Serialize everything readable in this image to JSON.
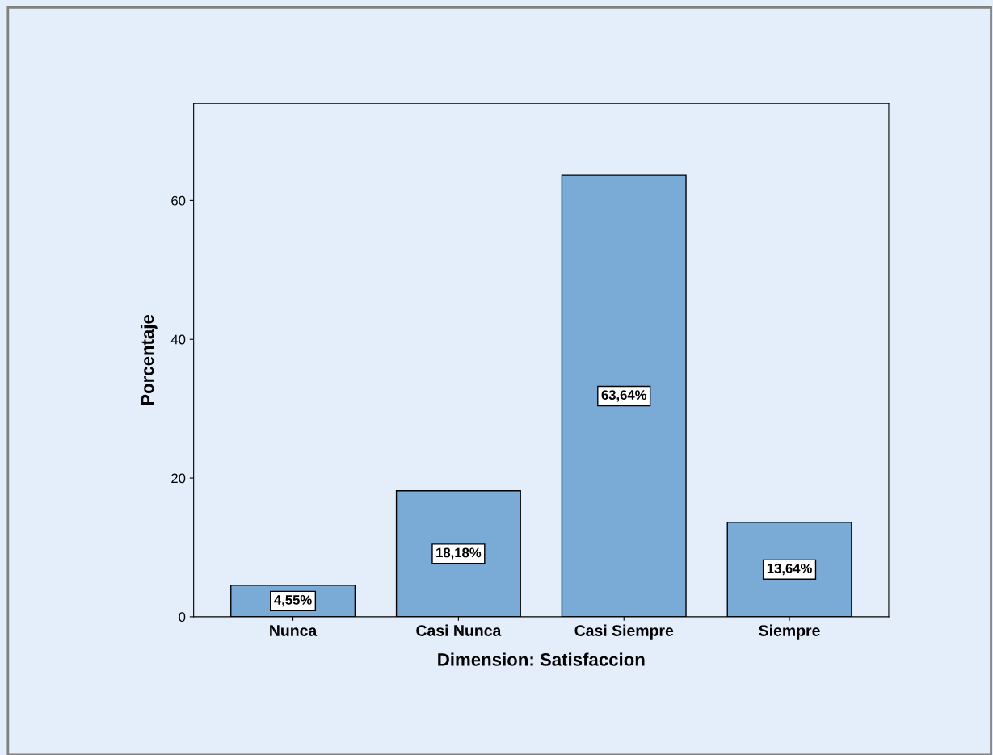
{
  "chart_data": {
    "type": "bar",
    "xlabel": "Dimension: Satisfaccion",
    "ylabel": "Porcentaje",
    "categories": [
      "Nunca",
      "Casi Nunca",
      "Casi Siempre",
      "Siempre"
    ],
    "values": [
      4.55,
      18.18,
      63.64,
      13.64
    ],
    "value_labels": [
      "4,55%",
      "18,18%",
      "63,64%",
      "13,64%"
    ],
    "color": "#7aaad6",
    "ylim": [
      0,
      74
    ],
    "yticks": [
      0,
      20,
      40,
      60
    ],
    "grid": false,
    "legend": false
  }
}
